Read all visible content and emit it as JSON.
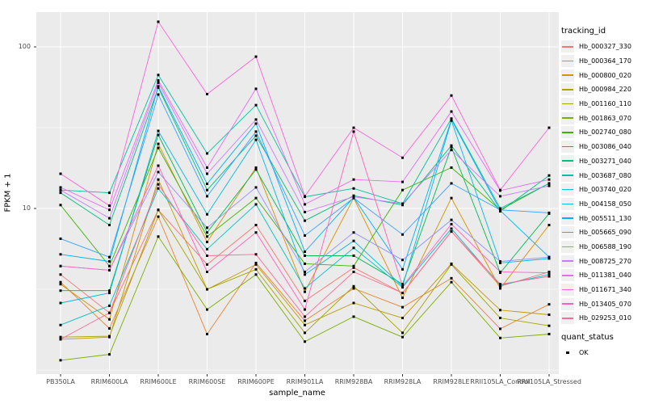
{
  "chart_data": {
    "type": "line",
    "title": "",
    "xlabel": "sample_name",
    "ylabel": "FPKM + 1",
    "y_scale": "log10",
    "ylim": [
      0.93,
      170
    ],
    "y_major_ticks": [
      {
        "label": "100",
        "value": 100
      },
      {
        "label": "10",
        "value": 10
      }
    ],
    "y_minor_values": [
      31.62,
      3.162,
      1.0
    ],
    "grid": "on",
    "legend_position": "right",
    "point_marker": "black-square",
    "categories": [
      "PB350LA",
      "RRIM600LA",
      "RRIM600LE",
      "RRIM600SE",
      "RRIM600PE",
      "RRIM901LA",
      "RRIM928BA",
      "RRIM928LA",
      "RRIM928LE",
      "RRII105LA_Control",
      "RRII105LA_Stressed"
    ],
    "series": [
      {
        "name": "Hb_000327_330",
        "color": "#F8766D",
        "values": [
          3.9,
          2.26,
          9.8,
          4.5,
          7.9,
          2.68,
          4.3,
          3.0,
          7.2,
          3.3,
          4.05
        ]
      },
      {
        "name": "Hb_000364_170",
        "color": "#EA8331",
        "values": [
          3.5,
          1.81,
          8.9,
          1.67,
          4.6,
          2.02,
          3.2,
          2.45,
          3.7,
          1.8,
          2.55
        ]
      },
      {
        "name": "Hb_000800_020",
        "color": "#D89000",
        "values": [
          3.4,
          2.06,
          25.1,
          6.2,
          17.9,
          3.05,
          11.6,
          2.8,
          11.6,
          3.2,
          7.9
        ]
      },
      {
        "name": "Hb_000984_220",
        "color": "#C09B00",
        "values": [
          1.55,
          1.6,
          15.1,
          3.16,
          4.5,
          1.9,
          2.6,
          2.1,
          4.55,
          2.35,
          2.2
        ]
      },
      {
        "name": "Hb_001160_110",
        "color": "#A3A500",
        "values": [
          1.6,
          1.62,
          9.8,
          3.16,
          4.2,
          1.7,
          3.3,
          1.7,
          4.5,
          2.1,
          1.88
        ]
      },
      {
        "name": "Hb_001863_070",
        "color": "#7CAE00",
        "values": [
          1.15,
          1.25,
          6.7,
          2.37,
          3.9,
          1.5,
          2.14,
          1.6,
          3.5,
          1.58,
          1.67
        ]
      },
      {
        "name": "Hb_002740_080",
        "color": "#39B600",
        "values": [
          10.5,
          4.4,
          23.7,
          6.7,
          11.6,
          4.55,
          4.4,
          13.0,
          17.9,
          9.8,
          14.3
        ]
      },
      {
        "name": "Hb_003086_040",
        "color": "#00BB4E",
        "values": [
          3.1,
          3.1,
          28.5,
          7.1,
          17.4,
          5.1,
          5.1,
          3.4,
          24.0,
          4.0,
          9.3
        ]
      },
      {
        "name": "Hb_003271_040",
        "color": "#00BF7D",
        "values": [
          12.5,
          7.9,
          56.0,
          13.0,
          28.2,
          8.4,
          12.0,
          10.5,
          24.5,
          9.6,
          16.0
        ]
      },
      {
        "name": "Hb_003687_080",
        "color": "#00C1A3",
        "values": [
          13.0,
          12.5,
          67.0,
          21.9,
          43.6,
          11.8,
          13.3,
          10.7,
          36.0,
          10.0,
          14.3
        ]
      },
      {
        "name": "Hb_003740_020",
        "color": "#00BFC4",
        "values": [
          1.9,
          2.5,
          13.3,
          5.6,
          10.6,
          3.2,
          5.7,
          3.25,
          7.5,
          3.35,
          3.9
        ]
      },
      {
        "name": "Hb_004158_050",
        "color": "#00BAE0",
        "values": [
          2.6,
          3.0,
          30.2,
          9.2,
          26.6,
          3.9,
          6.3,
          3.3,
          35.0,
          4.6,
          4.9
        ]
      },
      {
        "name": "Hb_005511_130",
        "color": "#00B0F6",
        "values": [
          5.2,
          4.7,
          57.0,
          14.2,
          33.5,
          5.4,
          11.7,
          4.2,
          35.5,
          9.7,
          5.0
        ]
      },
      {
        "name": "Hb_005665_090",
        "color": "#35A2FF",
        "values": [
          6.5,
          5.0,
          50.7,
          11.9,
          29.9,
          6.8,
          11.6,
          6.9,
          14.3,
          9.8,
          9.4
        ]
      },
      {
        "name": "Hb_006588_190",
        "color": "#9590FF",
        "values": [
          4.4,
          4.15,
          16.8,
          7.6,
          13.5,
          4.05,
          7.1,
          4.8,
          8.5,
          4.7,
          5.0
        ]
      },
      {
        "name": "Hb_008725_270",
        "color": "#C77CFF",
        "values": [
          13.0,
          8.7,
          60.0,
          16.4,
          35.5,
          9.5,
          11.8,
          10.7,
          23.0,
          11.9,
          13.8
        ]
      },
      {
        "name": "Hb_011381_040",
        "color": "#E76BF3",
        "values": [
          13.5,
          9.8,
          62.0,
          17.9,
          55.0,
          10.6,
          15.1,
          14.6,
          39.8,
          12.9,
          15.1
        ]
      },
      {
        "name": "Hb_011671_340",
        "color": "#FA62DB",
        "values": [
          16.4,
          10.4,
          143.0,
          51.0,
          87.0,
          11.9,
          31.6,
          20.6,
          50.0,
          13.0,
          31.6
        ]
      },
      {
        "name": "Hb_013405_070",
        "color": "#FF62BC",
        "values": [
          4.4,
          4.15,
          18.4,
          4.05,
          7.1,
          2.37,
          29.9,
          3.3,
          8.0,
          4.05,
          4.0
        ]
      },
      {
        "name": "Hb_029253_010",
        "color": "#FF6A98",
        "values": [
          1.55,
          2.26,
          14.1,
          5.1,
          5.2,
          2.14,
          4.05,
          3.0,
          7.2,
          3.4,
          3.8
        ]
      }
    ]
  },
  "legend": {
    "tracking_title": "tracking_id",
    "quant_title": "quant_status",
    "quant_items": [
      {
        "label": "OK"
      }
    ]
  },
  "style": {
    "panel_bg": "#EBEBEB",
    "grid_color": "#FFFFFF",
    "tick_color": "#333333",
    "tick_label_color": "#4D4D4D",
    "point_color": "#000000"
  }
}
